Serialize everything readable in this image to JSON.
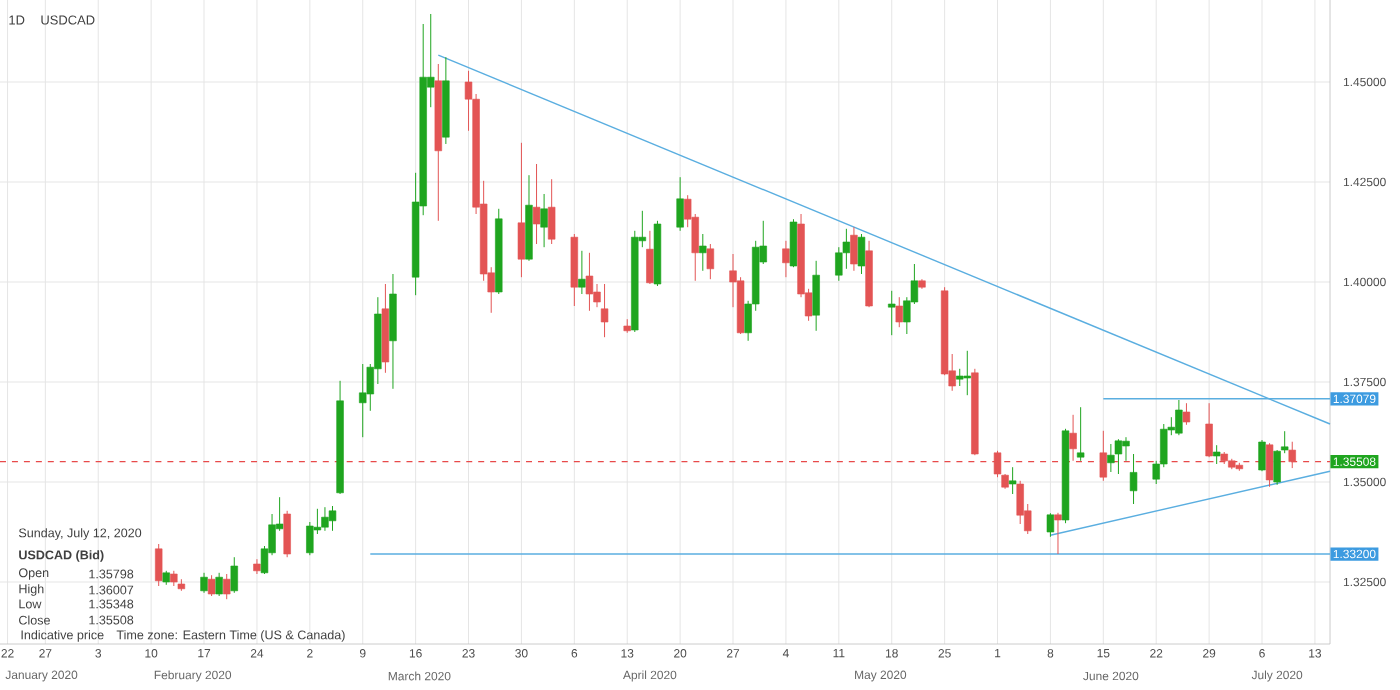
{
  "chart_data": {
    "type": "candlestick",
    "title": "1D",
    "subtitle": "USDCAD",
    "x": [
      "2020-02-11",
      "2020-02-12",
      "2020-02-13",
      "2020-02-14",
      "2020-02-17",
      "2020-02-18",
      "2020-02-19",
      "2020-02-20",
      "2020-02-21",
      "2020-02-24",
      "2020-02-25",
      "2020-02-26",
      "2020-02-27",
      "2020-02-28",
      "2020-03-02",
      "2020-03-03",
      "2020-03-04",
      "2020-03-05",
      "2020-03-06",
      "2020-03-09",
      "2020-03-10",
      "2020-03-11",
      "2020-03-12",
      "2020-03-13",
      "2020-03-16",
      "2020-03-17",
      "2020-03-18",
      "2020-03-19",
      "2020-03-20",
      "2020-03-23",
      "2020-03-24",
      "2020-03-25",
      "2020-03-26",
      "2020-03-27",
      "2020-03-30",
      "2020-03-31",
      "2020-04-01",
      "2020-04-02",
      "2020-04-03",
      "2020-04-06",
      "2020-04-07",
      "2020-04-08",
      "2020-04-09",
      "2020-04-10",
      "2020-04-13",
      "2020-04-14",
      "2020-04-15",
      "2020-04-16",
      "2020-04-17",
      "2020-04-20",
      "2020-04-21",
      "2020-04-22",
      "2020-04-23",
      "2020-04-24",
      "2020-04-27",
      "2020-04-28",
      "2020-04-29",
      "2020-04-30",
      "2020-05-01",
      "2020-05-04",
      "2020-05-05",
      "2020-05-06",
      "2020-05-07",
      "2020-05-08",
      "2020-05-11",
      "2020-05-12",
      "2020-05-13",
      "2020-05-14",
      "2020-05-15",
      "2020-05-18",
      "2020-05-19",
      "2020-05-20",
      "2020-05-21",
      "2020-05-22",
      "2020-05-25",
      "2020-05-26",
      "2020-05-27",
      "2020-05-28",
      "2020-05-29",
      "2020-06-01",
      "2020-06-02",
      "2020-06-03",
      "2020-06-04",
      "2020-06-05",
      "2020-06-08",
      "2020-06-09",
      "2020-06-10",
      "2020-06-11",
      "2020-06-12",
      "2020-06-15",
      "2020-06-16",
      "2020-06-17",
      "2020-06-18",
      "2020-06-19",
      "2020-06-22",
      "2020-06-23",
      "2020-06-24",
      "2020-06-25",
      "2020-06-26",
      "2020-06-29",
      "2020-06-30",
      "2020-07-01",
      "2020-07-02",
      "2020-07-03",
      "2020-07-06",
      "2020-07-07",
      "2020-07-08",
      "2020-07-09",
      "2020-07-10"
    ],
    "ohlc": [
      [
        1.3333,
        1.3345,
        1.324,
        1.3253
      ],
      [
        1.325,
        1.3278,
        1.3243,
        1.3273
      ],
      [
        1.327,
        1.3278,
        1.324,
        1.325
      ],
      [
        1.3245,
        1.3257,
        1.3228,
        1.3233
      ],
      [
        1.3228,
        1.3273,
        1.3223,
        1.3262
      ],
      [
        1.3257,
        1.3267,
        1.3215,
        1.322
      ],
      [
        1.322,
        1.3273,
        1.3215,
        1.3262
      ],
      [
        1.3257,
        1.327,
        1.3207,
        1.322
      ],
      [
        1.3228,
        1.3312,
        1.3223,
        1.329
      ],
      [
        1.3295,
        1.3307,
        1.327,
        1.3278
      ],
      [
        1.3273,
        1.334,
        1.327,
        1.3333
      ],
      [
        1.3323,
        1.342,
        1.3317,
        1.3393
      ],
      [
        1.3383,
        1.3462,
        1.3378,
        1.3395
      ],
      [
        1.342,
        1.3428,
        1.3312,
        1.332
      ],
      [
        1.3323,
        1.34,
        1.3317,
        1.339
      ],
      [
        1.338,
        1.3433,
        1.337,
        1.3387
      ],
      [
        1.3387,
        1.3437,
        1.3378,
        1.3412
      ],
      [
        1.3403,
        1.344,
        1.3378,
        1.3428
      ],
      [
        1.3473,
        1.3753,
        1.347,
        1.3703
      ],
      [
        1.3698,
        1.3795,
        1.3612,
        1.3723
      ],
      [
        1.372,
        1.3795,
        1.3678,
        1.3787
      ],
      [
        1.3783,
        1.3962,
        1.3745,
        1.392
      ],
      [
        1.3933,
        1.3995,
        1.3773,
        1.38
      ],
      [
        1.3853,
        1.402,
        1.3733,
        1.397
      ],
      [
        1.4012,
        1.4273,
        1.3967,
        1.42
      ],
      [
        1.419,
        1.4645,
        1.4167,
        1.4512
      ],
      [
        1.4487,
        1.467,
        1.4437,
        1.4512
      ],
      [
        1.4503,
        1.4545,
        1.4153,
        1.4328
      ],
      [
        1.4362,
        1.4562,
        1.4345,
        1.4503
      ],
      [
        1.45,
        1.4528,
        1.4378,
        1.4457
      ],
      [
        1.4457,
        1.447,
        1.417,
        1.4187
      ],
      [
        1.4195,
        1.4253,
        1.4003,
        1.402
      ],
      [
        1.4023,
        1.4037,
        1.3923,
        1.3975
      ],
      [
        1.3975,
        1.4183,
        1.397,
        1.4158
      ],
      [
        1.4148,
        1.4348,
        1.4012,
        1.4057
      ],
      [
        1.4057,
        1.4267,
        1.4053,
        1.4192
      ],
      [
        1.4187,
        1.4295,
        1.4095,
        1.4145
      ],
      [
        1.4137,
        1.422,
        1.4087,
        1.4183
      ],
      [
        1.4187,
        1.4257,
        1.4095,
        1.4107
      ],
      [
        1.4112,
        1.412,
        1.394,
        1.3987
      ],
      [
        1.3987,
        1.4078,
        1.397,
        1.4007
      ],
      [
        1.4015,
        1.4073,
        1.3928,
        1.397
      ],
      [
        1.3975,
        1.3995,
        1.3937,
        1.395
      ],
      [
        1.3933,
        1.3995,
        1.3862,
        1.39
      ],
      [
        1.389,
        1.3907,
        1.3873,
        1.3878
      ],
      [
        1.388,
        1.4128,
        1.3875,
        1.4112
      ],
      [
        1.4103,
        1.4178,
        1.4087,
        1.4112
      ],
      [
        1.4082,
        1.4128,
        1.3995,
        1.3998
      ],
      [
        1.3995,
        1.4153,
        1.399,
        1.4145
      ],
      [
        1.4137,
        1.4262,
        1.4128,
        1.4208
      ],
      [
        1.4207,
        1.4217,
        1.4137,
        1.4157
      ],
      [
        1.4162,
        1.417,
        1.4003,
        1.4073
      ],
      [
        1.4073,
        1.412,
        1.4028,
        1.409
      ],
      [
        1.4083,
        1.4095,
        1.4007,
        1.4033
      ],
      [
        1.4028,
        1.407,
        1.3937,
        1.4
      ],
      [
        1.4003,
        1.4012,
        1.387,
        1.3873
      ],
      [
        1.3873,
        1.3953,
        1.3853,
        1.3945
      ],
      [
        1.3945,
        1.4103,
        1.3928,
        1.4087
      ],
      [
        1.405,
        1.4153,
        1.4045,
        1.409
      ],
      [
        1.4083,
        1.4103,
        1.4012,
        1.4048
      ],
      [
        1.404,
        1.4157,
        1.4037,
        1.415
      ],
      [
        1.4145,
        1.417,
        1.3962,
        1.397
      ],
      [
        1.3973,
        1.3983,
        1.3903,
        1.3915
      ],
      [
        1.3917,
        1.4053,
        1.3878,
        1.4017
      ],
      [
        1.4017,
        1.4087,
        1.4003,
        1.4073
      ],
      [
        1.4073,
        1.4133,
        1.4033,
        1.41
      ],
      [
        1.4117,
        1.4137,
        1.4028,
        1.4045
      ],
      [
        1.404,
        1.412,
        1.402,
        1.4112
      ],
      [
        1.4078,
        1.4103,
        1.3937,
        1.394
      ],
      [
        1.3937,
        1.3978,
        1.3867,
        1.3945
      ],
      [
        1.394,
        1.3962,
        1.3887,
        1.39
      ],
      [
        1.39,
        1.3962,
        1.387,
        1.3953
      ],
      [
        1.395,
        1.4045,
        1.3945,
        1.4003
      ],
      [
        1.4003,
        1.4007,
        1.3983,
        1.3987
      ],
      [
        1.3978,
        1.3987,
        1.3767,
        1.377
      ],
      [
        1.3778,
        1.382,
        1.3728,
        1.374
      ],
      [
        1.3757,
        1.3783,
        1.374,
        1.3765
      ],
      [
        1.376,
        1.3828,
        1.3717,
        1.3765
      ],
      [
        1.3773,
        1.3783,
        1.3567,
        1.357
      ],
      [
        1.3573,
        1.3578,
        1.3512,
        1.352
      ],
      [
        1.3517,
        1.352,
        1.3483,
        1.3487
      ],
      [
        1.3495,
        1.3537,
        1.347,
        1.3503
      ],
      [
        1.3495,
        1.3503,
        1.3395,
        1.3417
      ],
      [
        1.3428,
        1.3445,
        1.337,
        1.3378
      ],
      [
        1.3375,
        1.3422,
        1.3363,
        1.3418
      ],
      [
        1.3418,
        1.3423,
        1.332,
        1.3405
      ],
      [
        1.3405,
        1.3633,
        1.3397,
        1.3628
      ],
      [
        1.3622,
        1.3668,
        1.3553,
        1.3583
      ],
      [
        1.3562,
        1.3687,
        1.3553,
        1.3573
      ],
      [
        1.3573,
        1.3628,
        1.3503,
        1.3512
      ],
      [
        1.3548,
        1.3595,
        1.3525,
        1.3567
      ],
      [
        1.357,
        1.3607,
        1.352,
        1.3603
      ],
      [
        1.359,
        1.3612,
        1.3553,
        1.3602
      ],
      [
        1.3478,
        1.357,
        1.3445,
        1.3524
      ],
      [
        1.3507,
        1.3553,
        1.3495,
        1.3545
      ],
      [
        1.3545,
        1.3645,
        1.3537,
        1.3632
      ],
      [
        1.363,
        1.3662,
        1.3617,
        1.3637
      ],
      [
        1.3622,
        1.3705,
        1.3617,
        1.368
      ],
      [
        1.3675,
        1.3697,
        1.3643,
        1.365
      ],
      [
        1.3645,
        1.3697,
        1.3562,
        1.3565
      ],
      [
        1.3565,
        1.3592,
        1.3545,
        1.3575
      ],
      [
        1.357,
        1.3575,
        1.3545,
        1.3553
      ],
      [
        1.3553,
        1.3558,
        1.3532,
        1.3537
      ],
      [
        1.3542,
        1.3548,
        1.3528,
        1.3533
      ],
      [
        1.353,
        1.3605,
        1.3527,
        1.36
      ],
      [
        1.3593,
        1.3597,
        1.3488,
        1.3505
      ],
      [
        1.35,
        1.358,
        1.3493,
        1.3577
      ],
      [
        1.358,
        1.3627,
        1.3572,
        1.3588
      ],
      [
        1.35798,
        1.36007,
        1.35348,
        1.35508
      ]
    ],
    "series": [
      {
        "type": "line",
        "color": "#5aaee0",
        "x": [
          "2020-03-19",
          "2020-07-15"
        ],
        "values": [
          1.4567,
          1.3645
        ]
      },
      {
        "type": "line",
        "color": "#5aaee0",
        "x": [
          "2020-06-08",
          "2020-07-15"
        ],
        "values": [
          1.3367,
          1.3527
        ]
      },
      {
        "type": "line",
        "color": "#5aaee0",
        "x": [
          "2020-06-15",
          "2020-07-15"
        ],
        "values": [
          1.3708,
          1.3708
        ]
      },
      {
        "type": "line",
        "color": "#5aaee0",
        "x": [
          "2020-03-10",
          "2020-07-15"
        ],
        "values": [
          1.332,
          1.332
        ]
      }
    ],
    "ref_lines": [
      {
        "axis": "y",
        "value": 1.35508,
        "label": "1.35508",
        "color": "#e84a4a",
        "line_style": "dashed"
      }
    ],
    "xlim": [
      "2020-01-21",
      "2020-07-15"
    ],
    "ylim": [
      1.3095,
      1.4705
    ],
    "xticks": [
      {
        "value": "2020-01-22",
        "label": "22"
      },
      {
        "value": "2020-01-27",
        "label": "27"
      },
      {
        "value": "2020-02-03",
        "label": "3"
      },
      {
        "value": "2020-02-10",
        "label": "10"
      },
      {
        "value": "2020-02-17",
        "label": "17"
      },
      {
        "value": "2020-02-24",
        "label": "24"
      },
      {
        "value": "2020-03-02",
        "label": "2"
      },
      {
        "value": "2020-03-09",
        "label": "9"
      },
      {
        "value": "2020-03-16",
        "label": "16"
      },
      {
        "value": "2020-03-23",
        "label": "23"
      },
      {
        "value": "2020-03-30",
        "label": "30"
      },
      {
        "value": "2020-04-06",
        "label": "6"
      },
      {
        "value": "2020-04-13",
        "label": "13"
      },
      {
        "value": "2020-04-20",
        "label": "20"
      },
      {
        "value": "2020-04-27",
        "label": "27"
      },
      {
        "value": "2020-05-04",
        "label": "4"
      },
      {
        "value": "2020-05-11",
        "label": "11"
      },
      {
        "value": "2020-05-18",
        "label": "18"
      },
      {
        "value": "2020-05-25",
        "label": "25"
      },
      {
        "value": "2020-06-01",
        "label": "1"
      },
      {
        "value": "2020-06-08",
        "label": "8"
      },
      {
        "value": "2020-06-15",
        "label": "15"
      },
      {
        "value": "2020-06-22",
        "label": "22"
      },
      {
        "value": "2020-06-29",
        "label": "29"
      },
      {
        "value": "2020-07-06",
        "label": "6"
      },
      {
        "value": "2020-07-13",
        "label": "13"
      }
    ],
    "yticks": [
      {
        "value": 1.325,
        "label": "1.32500"
      },
      {
        "value": 1.35,
        "label": "1.35000"
      },
      {
        "value": 1.375,
        "label": "1.37500"
      },
      {
        "value": 1.4,
        "label": "1.40000"
      },
      {
        "value": 1.425,
        "label": "1.42500"
      },
      {
        "value": 1.45,
        "label": "1.45000"
      }
    ],
    "grid": true,
    "annotations": [
      "Sunday, July 12, 2020",
      "USDCAD (Bid)",
      "Open",
      "1.35798",
      "High",
      "1.36007",
      "Low",
      "1.35348",
      "Close",
      "1.35508",
      "Indicative price",
      "Time zone: Eastern Time (US & Canada)",
      "January 2020",
      "February 2020",
      "March 2020",
      "April 2020",
      "May 2020",
      "June 2020",
      "July 2020",
      {
        "text": "1.37079",
        "x": "2020-07-15",
        "y": 1.3708
      },
      {
        "text": "1.33200",
        "x": "2020-07-15",
        "y": 1.332
      }
    ]
  }
}
